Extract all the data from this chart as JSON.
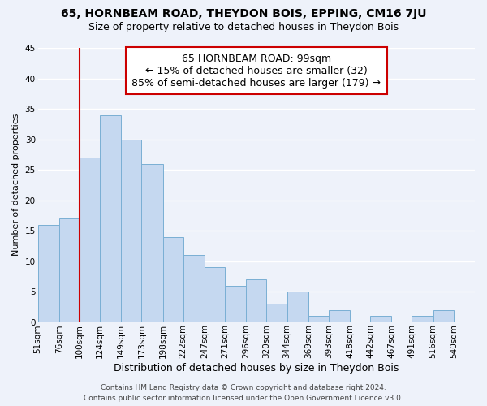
{
  "title": "65, HORNBEAM ROAD, THEYDON BOIS, EPPING, CM16 7JU",
  "subtitle": "Size of property relative to detached houses in Theydon Bois",
  "xlabel": "Distribution of detached houses by size in Theydon Bois",
  "ylabel": "Number of detached properties",
  "bar_labels": [
    "51sqm",
    "76sqm",
    "100sqm",
    "124sqm",
    "149sqm",
    "173sqm",
    "198sqm",
    "222sqm",
    "247sqm",
    "271sqm",
    "296sqm",
    "320sqm",
    "344sqm",
    "369sqm",
    "393sqm",
    "418sqm",
    "442sqm",
    "467sqm",
    "491sqm",
    "516sqm",
    "540sqm"
  ],
  "bar_values": [
    16,
    17,
    27,
    34,
    30,
    26,
    14,
    11,
    9,
    6,
    7,
    3,
    5,
    1,
    2,
    0,
    1,
    0,
    1,
    2,
    0
  ],
  "bin_edges": [
    51,
    76,
    100,
    124,
    149,
    173,
    198,
    222,
    247,
    271,
    296,
    320,
    344,
    369,
    393,
    418,
    442,
    467,
    491,
    516,
    540,
    565
  ],
  "bar_color": "#c5d8f0",
  "bar_edge_color": "#7aafd4",
  "vline_x": 100,
  "vline_color": "#cc0000",
  "ylim": [
    0,
    45
  ],
  "yticks": [
    0,
    5,
    10,
    15,
    20,
    25,
    30,
    35,
    40,
    45
  ],
  "annotation_title": "65 HORNBEAM ROAD: 99sqm",
  "annotation_line1": "← 15% of detached houses are smaller (32)",
  "annotation_line2": "85% of semi-detached houses are larger (179) →",
  "footer_line1": "Contains HM Land Registry data © Crown copyright and database right 2024.",
  "footer_line2": "Contains public sector information licensed under the Open Government Licence v3.0.",
  "background_color": "#eef2fa",
  "grid_color": "#ffffff",
  "title_fontsize": 10,
  "subtitle_fontsize": 9,
  "ylabel_fontsize": 8,
  "xlabel_fontsize": 9,
  "tick_fontsize": 7.5,
  "annotation_fontsize": 9,
  "footer_fontsize": 6.5
}
